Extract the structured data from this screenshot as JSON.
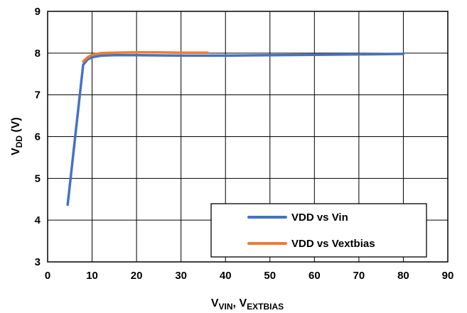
{
  "chart_data": {
    "type": "line",
    "xlabel": {
      "main": "V",
      "sub1": "VIN",
      "sep": ", V",
      "sub2": "EXTBIAS"
    },
    "ylabel": {
      "main": "V",
      "sub": "DD",
      "suffix": " (V)"
    },
    "xlim": [
      0,
      90
    ],
    "ylim": [
      3,
      9
    ],
    "xticks": [
      0,
      10,
      20,
      30,
      40,
      50,
      60,
      70,
      80,
      90
    ],
    "yticks": [
      3,
      4,
      5,
      6,
      7,
      8,
      9
    ],
    "grid": true,
    "legend_position": "bottom-right",
    "series": [
      {
        "name": "VDD vs Vin",
        "color": "#4472C4",
        "x": [
          4.5,
          8,
          9,
          10,
          12,
          15,
          20,
          30,
          40,
          50,
          60,
          70,
          80
        ],
        "y": [
          4.37,
          7.72,
          7.85,
          7.9,
          7.94,
          7.95,
          7.95,
          7.94,
          7.94,
          7.95,
          7.96,
          7.97,
          7.98
        ]
      },
      {
        "name": "VDD vs Vextbias",
        "color": "#ED7D31",
        "x": [
          8,
          9,
          10,
          12,
          15,
          20,
          25,
          30,
          36
        ],
        "y": [
          7.8,
          7.9,
          7.96,
          8.0,
          8.01,
          8.02,
          8.02,
          8.01,
          8.01
        ]
      }
    ]
  }
}
